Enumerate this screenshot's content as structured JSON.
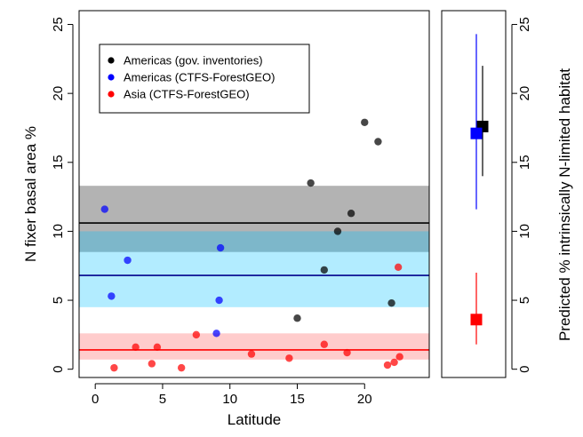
{
  "chart_data": [
    {
      "type": "scatter",
      "xlabel": "Latitude",
      "ylabel": "N fixer basal area %",
      "xlim": [
        -1.2,
        24.8
      ],
      "ylim": [
        -0.6,
        26.0
      ],
      "xticks": [
        0,
        5,
        10,
        15,
        20
      ],
      "yticks": [
        0,
        5,
        10,
        15,
        20,
        25
      ],
      "xtick_labels": [
        "0",
        "5",
        "10",
        "15",
        "20"
      ],
      "ytick_labels": [
        "0",
        "5",
        "10",
        "15",
        "20",
        "25"
      ],
      "grid": false,
      "legend_position": "top-left",
      "bands": [
        {
          "series": "Americas (gov. inventories)",
          "mean": 10.6,
          "low": 8.5,
          "high": 13.3,
          "line_color": "#000000",
          "fill_color": "#808080",
          "fill_opacity": 0.6
        },
        {
          "series": "Americas (CTFS-ForestGEO)",
          "mean": 6.8,
          "low": 4.5,
          "high": 10.0,
          "line_color": "#00008b",
          "fill_color": "#00bfff",
          "fill_opacity": 0.3
        },
        {
          "series": "Asia (CTFS-ForestGEO)",
          "mean": 1.4,
          "low": 0.7,
          "high": 2.6,
          "line_color": "#ff0000",
          "fill_color": "#ff0000",
          "fill_opacity": 0.2
        }
      ],
      "series": [
        {
          "name": "Americas (gov. inventories)",
          "color": "#000000",
          "points": [
            [
              15.0,
              3.7
            ],
            [
              16.0,
              13.5
            ],
            [
              17.0,
              7.2
            ],
            [
              18.0,
              10.0
            ],
            [
              19.0,
              11.3
            ],
            [
              20.0,
              17.9
            ],
            [
              21.0,
              16.5
            ],
            [
              22.0,
              4.8
            ]
          ]
        },
        {
          "name": "Americas (CTFS-ForestGEO)",
          "color": "#0000ff",
          "points": [
            [
              0.7,
              11.6
            ],
            [
              1.2,
              5.3
            ],
            [
              2.4,
              7.9
            ],
            [
              9.0,
              2.6
            ],
            [
              9.2,
              5.0
            ],
            [
              9.3,
              8.8
            ]
          ]
        },
        {
          "name": "Asia (CTFS-ForestGEO)",
          "color": "#ff0000",
          "points": [
            [
              1.4,
              0.1
            ],
            [
              3.0,
              1.6
            ],
            [
              4.2,
              0.4
            ],
            [
              4.6,
              1.6
            ],
            [
              6.4,
              0.1
            ],
            [
              7.5,
              2.5
            ],
            [
              11.6,
              1.1
            ],
            [
              14.4,
              0.8
            ],
            [
              17.0,
              1.8
            ],
            [
              18.7,
              1.2
            ],
            [
              21.7,
              0.3
            ],
            [
              22.2,
              0.5
            ],
            [
              22.5,
              7.4
            ],
            [
              22.6,
              0.9
            ]
          ]
        }
      ]
    },
    {
      "type": "scatter",
      "ylabel": "Predicted % intrinsically N-limited habitat",
      "ylim": [
        -0.6,
        26.0
      ],
      "yticks": [
        0,
        5,
        10,
        15,
        20,
        25
      ],
      "ytick_labels": [
        "0",
        "5",
        "10",
        "15",
        "20",
        "25"
      ],
      "grid": false,
      "points": [
        {
          "series": "Americas (gov. inventories)",
          "color": "#000000",
          "value": 17.6,
          "low": 14.0,
          "high": 22.0
        },
        {
          "series": "Americas (CTFS-ForestGEO)",
          "color": "#0000ff",
          "value": 17.1,
          "low": 11.6,
          "high": 24.3
        },
        {
          "series": "Asia (CTFS-ForestGEO)",
          "color": "#ff0000",
          "value": 3.6,
          "low": 1.8,
          "high": 7.0
        }
      ]
    }
  ]
}
